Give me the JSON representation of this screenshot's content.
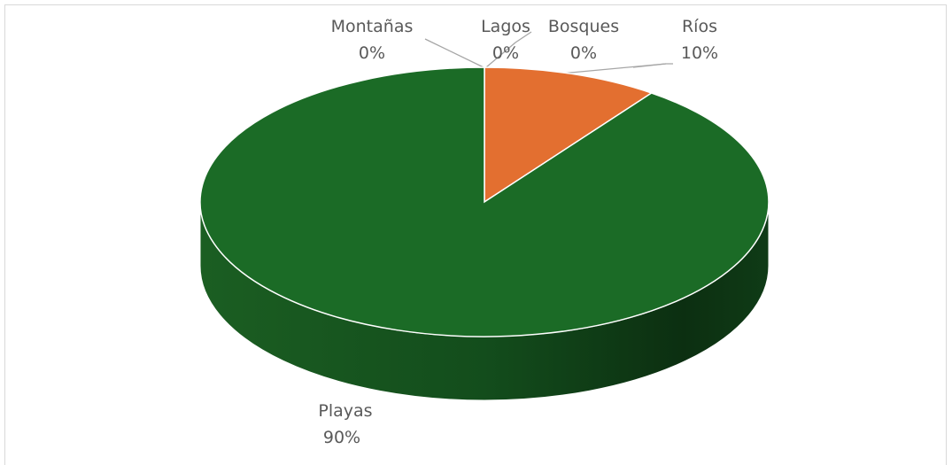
{
  "chart_data": {
    "type": "pie",
    "style": "3d",
    "categories": [
      "Ríos",
      "Bosques",
      "Lagos",
      "Montañas",
      "Playas"
    ],
    "values": [
      10,
      0,
      0,
      0,
      90
    ],
    "percent_labels": [
      "10%",
      "0%",
      "0%",
      "0%",
      "90%"
    ],
    "colors": [
      "#e36f30",
      "#3a6fb0",
      "#8a8a8a",
      "#f2b400",
      "#1b6b26"
    ]
  }
}
